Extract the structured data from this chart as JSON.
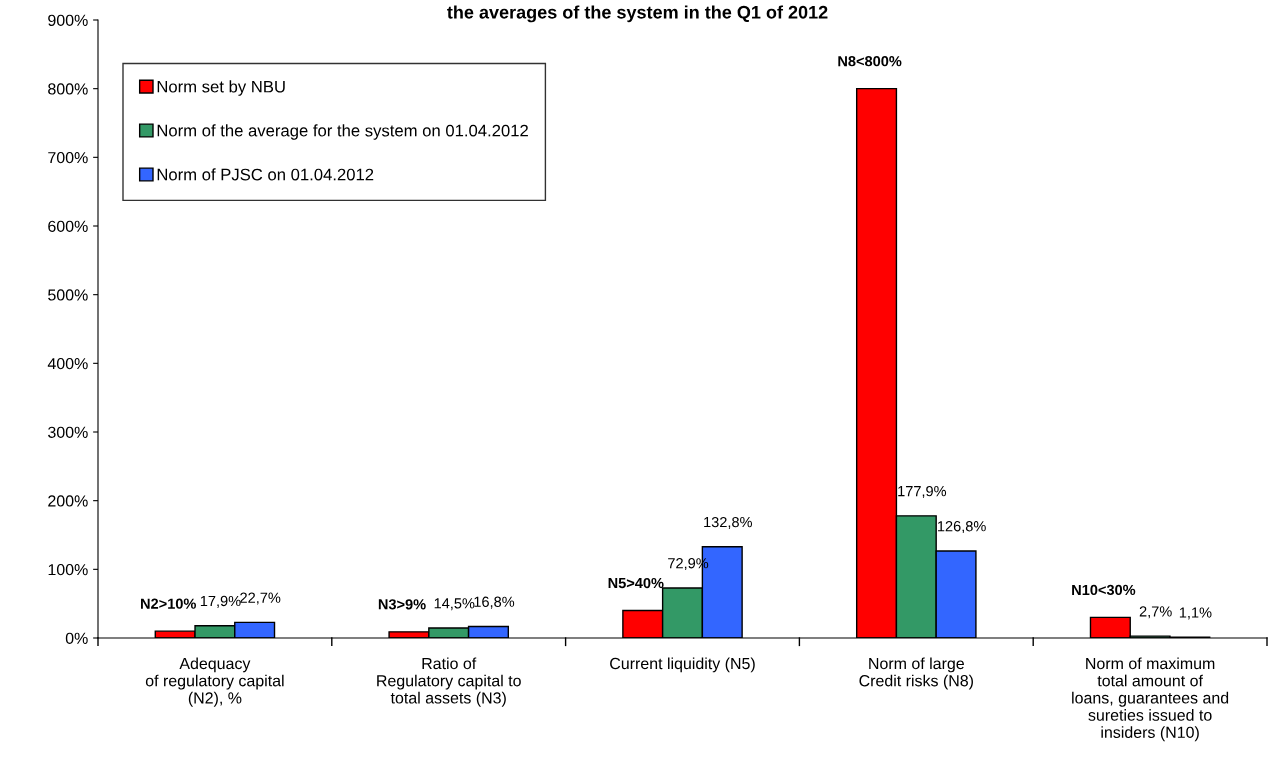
{
  "chart_data": {
    "type": "bar",
    "title": "the averages of the system in the Q1 of 2012",
    "categories": [
      "Adequacy\nof regulatory capital\n(N2), %",
      "Ratio of\nRegulatory capital to\ntotal assets (N3)",
      "Current liquidity (N5)",
      "Norm of large\nCredit risks (N8)",
      "Norm of maximum\ntotal amount of\nloans, guarantees and\nsureties issued to\ninsiders (N10)"
    ],
    "series": [
      {
        "name": "Norm set by NBU",
        "color": "#ff0000",
        "values": [
          10,
          9,
          40,
          800,
          30
        ],
        "value_labels": [
          "N2>10%",
          "N3>9%",
          "N5>40%",
          "N8<800%",
          "N10<30%"
        ]
      },
      {
        "name": "Norm of the average for the system on 01.04.2012",
        "color": "#339966",
        "values": [
          17.9,
          14.5,
          72.9,
          177.9,
          2.7
        ],
        "value_labels": [
          "17,9%",
          "14,5%",
          "72,9%",
          "177,9%",
          "2,7%"
        ]
      },
      {
        "name": "Norm of PJSC on 01.04.2012",
        "color": "#3366ff",
        "values": [
          22.7,
          16.8,
          132.8,
          126.8,
          1.1
        ],
        "value_labels": [
          "22,7%",
          "16,8%",
          "132,8%",
          "126,8%",
          "1,1%"
        ]
      }
    ],
    "ylim": [
      0,
      900
    ],
    "yticks": [
      {
        "value": 0,
        "label": "0%"
      },
      {
        "value": 100,
        "label": "100%"
      },
      {
        "value": 200,
        "label": "200%"
      },
      {
        "value": 300,
        "label": "300%"
      },
      {
        "value": 400,
        "label": "400%"
      },
      {
        "value": 500,
        "label": "500%"
      },
      {
        "value": 600,
        "label": "600%"
      },
      {
        "value": 700,
        "label": "700%"
      },
      {
        "value": 800,
        "label": "800%"
      },
      {
        "value": 900,
        "label": "900%"
      }
    ],
    "grid": false,
    "legend": "top left"
  }
}
